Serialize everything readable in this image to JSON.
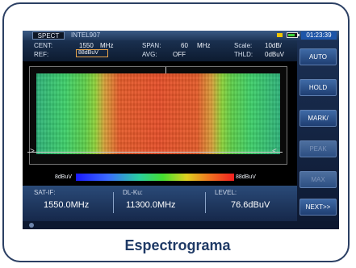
{
  "topbar": {
    "mode_tab": "SPECT",
    "device_name": "INTEL907",
    "clock": "01:23:39"
  },
  "params": {
    "cent_label": "CENT:",
    "cent_value": "1550",
    "cent_unit": "MHz",
    "span_label": "SPAN:",
    "span_value": "60",
    "span_unit": "MHz",
    "scale_label": "Scale:",
    "scale_value": "10dB/",
    "ref_label": "REF:",
    "ref_value": "88dBuV",
    "avg_label": "AVG:",
    "avg_value": "OFF",
    "thld_label": "THLD:",
    "thld_value": "0dBuV"
  },
  "colorscale": {
    "min_label": "8dBuV",
    "max_label": "88dBuV"
  },
  "info": {
    "sat_if_label": "SAT-IF:",
    "sat_if_value": "1550.0MHz",
    "dl_ku_label": "DL-Ku:",
    "dl_ku_value": "11300.0MHz",
    "level_label": "LEVEL:",
    "level_value": "76.6dBuV"
  },
  "softkeys": {
    "auto": "AUTO",
    "hold": "HOLD",
    "mark": "MARK/",
    "peak": "PEAK",
    "max": "MAX",
    "next": "NEXT>>"
  },
  "caption": "Espectrograma"
}
